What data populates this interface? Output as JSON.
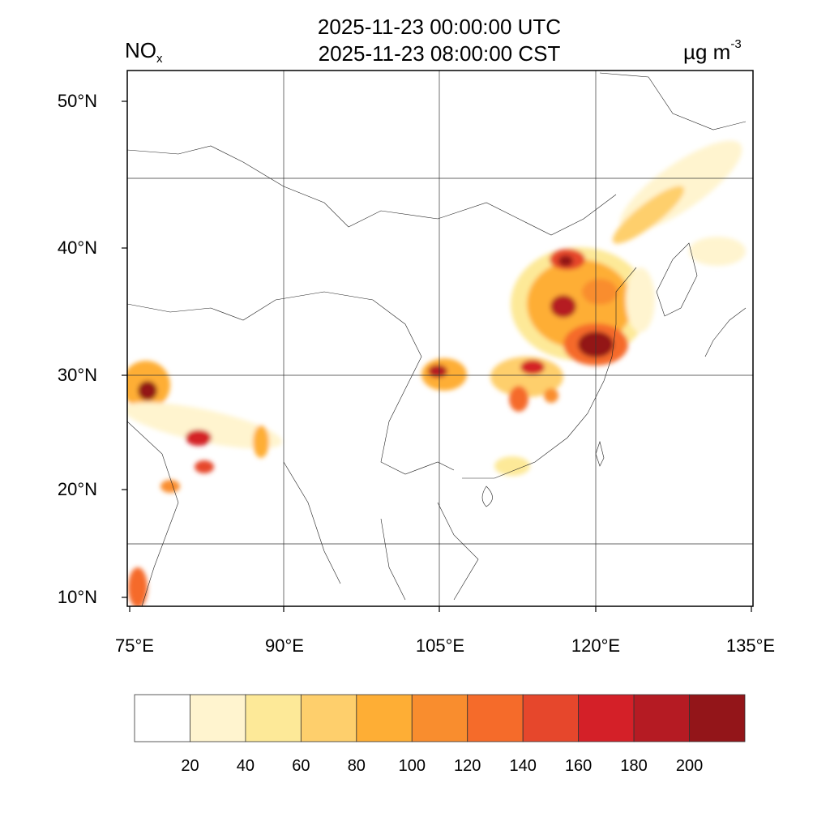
{
  "header": {
    "title_utc": "2025-11-23 00:00:00 UTC",
    "title_cst": "2025-11-23 08:00:00 CST",
    "variable": "NO",
    "variable_sub": "x",
    "units": "µg m",
    "units_sup": "-3"
  },
  "map": {
    "lat_labels": [
      "50°N",
      "40°N",
      "30°N",
      "20°N",
      "10°N"
    ],
    "lon_labels": [
      "75°E",
      "90°E",
      "105°E",
      "120°E",
      "135°E"
    ],
    "gridlines": true
  },
  "colorbar": {
    "labels": [
      "20",
      "40",
      "60",
      "80",
      "100",
      "120",
      "140",
      "160",
      "180",
      "200"
    ],
    "colors": [
      "#ffffff",
      "#fff4cf",
      "#fde998",
      "#fecf6c",
      "#feae35",
      "#f98d2e",
      "#f56b2a",
      "#e6472c",
      "#d42028",
      "#b51b23",
      "#931519"
    ]
  }
}
